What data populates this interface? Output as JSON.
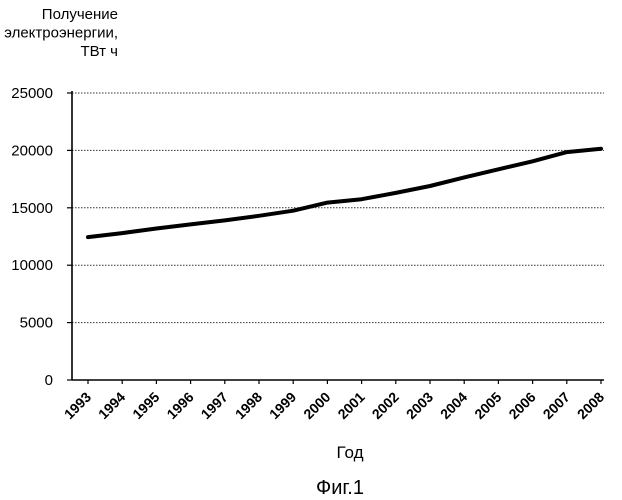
{
  "chart_data": {
    "type": "line",
    "ylabel_lines": [
      "Получение",
      "электроэнергии,",
      "ТВт ч"
    ],
    "xlabel": "Год",
    "caption": "Фиг.1",
    "ylim": [
      0,
      25000
    ],
    "yticks": [
      "0",
      "5000",
      "10000",
      "15000",
      "20000",
      "25000"
    ],
    "grid": true,
    "x": [
      "1993",
      "1994",
      "1995",
      "1996",
      "1997",
      "1998",
      "1999",
      "2000",
      "2001",
      "2002",
      "2003",
      "2004",
      "2005",
      "2006",
      "2007",
      "2008"
    ],
    "series": [
      {
        "values": [
          12450,
          12800,
          13200,
          13550,
          13900,
          14300,
          14750,
          15450,
          15750,
          16300,
          16900,
          17650,
          18350,
          19050,
          19850,
          20150
        ]
      }
    ],
    "line_color": "#000000"
  }
}
